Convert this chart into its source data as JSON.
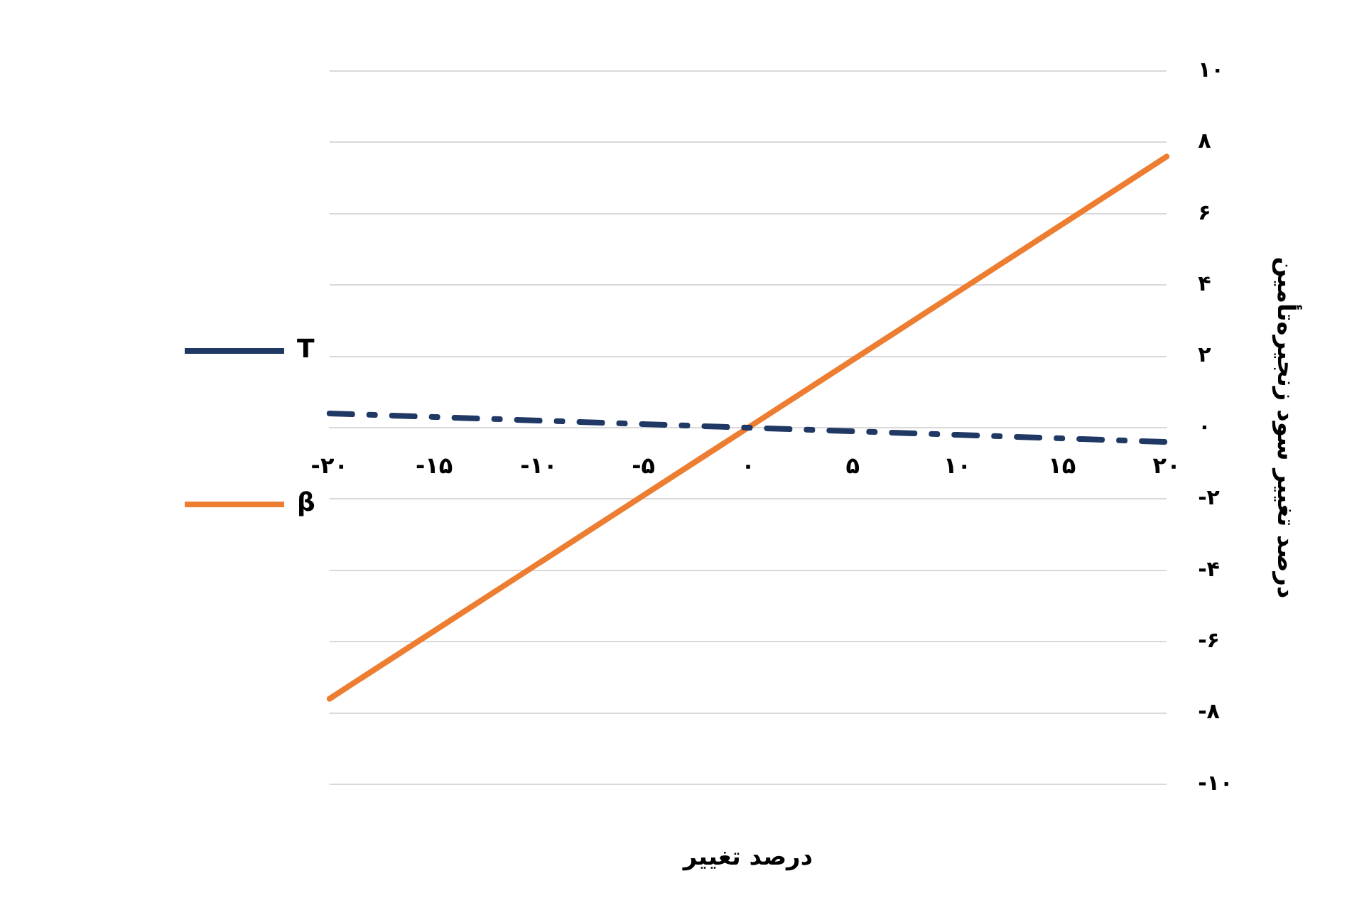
{
  "chart_data": {
    "type": "line",
    "xlabel": "درصد تغییر",
    "ylabel": "درصد تغییر سود زنجیره‌تأمین",
    "categories": [
      "-۲۰",
      "-۱۵",
      "-۱۰",
      "-۵",
      "۰",
      "۵",
      "۱۰",
      "۱۵",
      "۲۰"
    ],
    "series": [
      {
        "name": "T",
        "color": "#203864",
        "line_style": "dashed",
        "values": [
          0.4,
          0.3,
          0.2,
          0.1,
          0,
          -0.1,
          -0.2,
          -0.3,
          -0.4
        ]
      },
      {
        "name": "β",
        "color": "#ed7d31",
        "line_style": "solid",
        "values": [
          -7.6,
          -5.7,
          -3.8,
          -1.9,
          0,
          1.9,
          3.8,
          5.7,
          7.6
        ]
      }
    ],
    "ylim": [
      -10,
      10
    ],
    "yticks": [
      {
        "value": -10,
        "label": "-۱۰"
      },
      {
        "value": -8,
        "label": "-۸"
      },
      {
        "value": -6,
        "label": "-۶"
      },
      {
        "value": -4,
        "label": "-۴"
      },
      {
        "value": -2,
        "label": "-۲"
      },
      {
        "value": 0,
        "label": "۰"
      },
      {
        "value": 2,
        "label": "۲"
      },
      {
        "value": 4,
        "label": "۴"
      },
      {
        "value": 6,
        "label": "۶"
      },
      {
        "value": 8,
        "label": "۸"
      },
      {
        "value": 10,
        "label": "۱۰"
      }
    ],
    "grid": "y",
    "legend": "left",
    "marker": "none"
  }
}
